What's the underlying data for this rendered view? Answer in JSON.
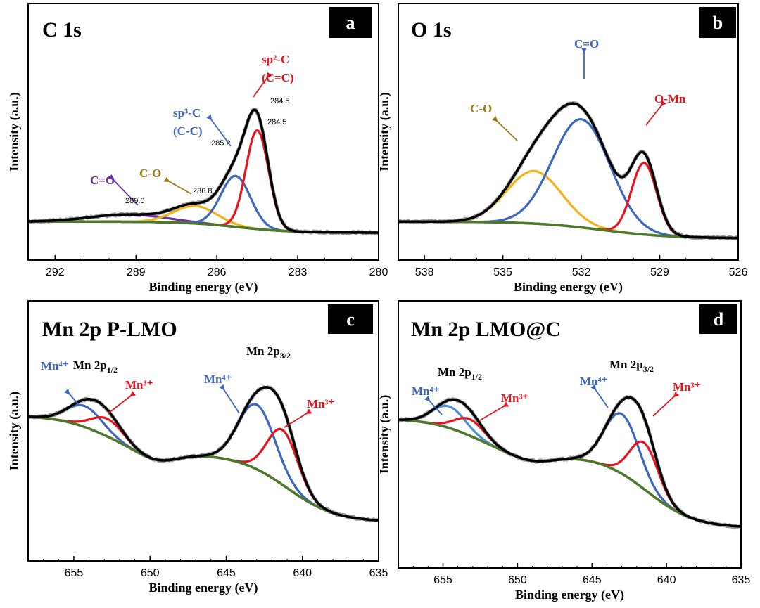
{
  "colors": {
    "raw": "#9a9a9a",
    "envelope": "#000000",
    "background": "#4a7a2a",
    "red": "#e8131c",
    "blue": "#3c67c0",
    "yellow": "#f2b21a",
    "purple": "#6b2fa0",
    "lightblue": "#4a90d9",
    "brown": "#a07a12"
  },
  "chart_data": [
    {
      "type": "line",
      "panel": "a",
      "title": "C 1s",
      "xlabel": "Binding energy (eV)",
      "ylabel": "Intensity (a.u.)",
      "xlim": [
        293.0,
        280.0
      ],
      "ylim": [
        0,
        1.05
      ],
      "xticks": [
        292,
        289,
        286,
        283,
        280
      ],
      "background": {
        "left": 0.0,
        "right": -0.07,
        "center": 285.2,
        "width": 1.0
      },
      "components": [
        {
          "name": "C=O",
          "color_key": "purple",
          "center": 289.3,
          "height": 0.045,
          "width": 1.4,
          "on_background": true
        },
        {
          "name": "C-O",
          "color_key": "yellow",
          "center": 286.8,
          "height": 0.11,
          "width": 0.8,
          "on_background": true
        },
        {
          "name": "sp3-C (C-C)",
          "color_key": "blue",
          "center": 285.3,
          "height": 0.32,
          "width": 0.55,
          "on_background": true
        },
        {
          "name": "sp2-C (C=C)",
          "color_key": "red",
          "center": 284.5,
          "height": 0.62,
          "width": 0.42,
          "on_background": true
        }
      ],
      "annotations": [
        {
          "type": "label",
          "text": "C=O",
          "color_key": "purple"
        },
        {
          "type": "label",
          "text": "C-O",
          "color_key": "brown"
        },
        {
          "type": "label",
          "text": "sp³-C",
          "color_key": "blue"
        },
        {
          "type": "label",
          "text": "(C-C)",
          "color_key": "blue"
        },
        {
          "type": "label",
          "text": "sp²-C",
          "color_key": "red"
        },
        {
          "type": "label",
          "text": "(C=C)",
          "color_key": "red"
        }
      ],
      "peak_values": [
        "289.0",
        "286.8",
        "285.2",
        "284.5",
        "284.5"
      ]
    },
    {
      "type": "line",
      "panel": "b",
      "title": "O 1s",
      "xlabel": "Binding energy (eV)",
      "ylabel": "Intensity (a.u.)",
      "xlim": [
        539.0,
        526.0
      ],
      "ylim": [
        0,
        1.05
      ],
      "xticks": [
        538,
        535,
        532,
        529,
        526
      ],
      "background": {
        "left": 0.0,
        "right": -0.105,
        "center": 531.2,
        "width": 1.3
      },
      "components": [
        {
          "name": "C-O",
          "color_key": "yellow",
          "center": 533.8,
          "height": 0.33,
          "width": 1.05,
          "on_background": true
        },
        {
          "name": "C=O",
          "color_key": "blue",
          "center": 532.0,
          "height": 0.68,
          "width": 1.1,
          "on_background": true
        },
        {
          "name": "O-Mn",
          "color_key": "red",
          "center": 529.6,
          "height": 0.45,
          "width": 0.48,
          "on_background": true
        }
      ],
      "annotations": [
        {
          "type": "label",
          "text": "C-O",
          "color_key": "brown"
        },
        {
          "type": "label",
          "text": "C=O",
          "color_key": "blue"
        },
        {
          "type": "label",
          "text": "O-Mn",
          "color_key": "red"
        }
      ]
    },
    {
      "type": "line",
      "panel": "c",
      "title": "Mn 2p P-LMO",
      "xlabel": "Binding energy (eV)",
      "ylabel": "Intensity (a.u.)",
      "xlim": [
        658.0,
        635.0
      ],
      "ylim": [
        0,
        1.05
      ],
      "xticks": [
        655,
        650,
        645,
        640,
        635
      ],
      "background": {
        "left": 0.52,
        "right": 0.0,
        "steps": [
          {
            "center": 653.0,
            "height": 0.24,
            "width": 1.5
          },
          {
            "center": 641.0,
            "height": 0.42,
            "width": 1.6
          }
        ],
        "dip": {
          "center": 649.5,
          "height": 0.055,
          "width": 1.3
        }
      },
      "components": [
        {
          "name": "Mn4+ 2p1/2",
          "color_key": "blue",
          "center": 654.3,
          "height": 0.13,
          "width": 1.15,
          "on_background": true
        },
        {
          "name": "Mn3+ 2p1/2",
          "color_key": "red",
          "center": 652.8,
          "height": 0.11,
          "width": 1.05,
          "on_background": true
        },
        {
          "name": "Mn4+ 2p3/2",
          "color_key": "blue",
          "center": 643.0,
          "height": 0.4,
          "width": 1.2,
          "on_background": true
        },
        {
          "name": "Mn3+ 2p3/2",
          "color_key": "red",
          "center": 641.3,
          "height": 0.34,
          "width": 1.0,
          "on_background": true
        }
      ],
      "annotations": [
        {
          "type": "label",
          "text": "Mn 2p",
          "sub": "1/2",
          "color_key": "envelope"
        },
        {
          "type": "label",
          "text": "Mn 2p",
          "sub": "3/2",
          "color_key": "envelope"
        },
        {
          "type": "label",
          "text": "Mn⁴⁺",
          "color_key": "blue"
        },
        {
          "type": "label",
          "text": "Mn³⁺",
          "color_key": "red"
        },
        {
          "type": "label",
          "text": "Mn⁴⁺",
          "color_key": "blue"
        },
        {
          "type": "label",
          "text": "Mn³⁺",
          "color_key": "red"
        }
      ]
    },
    {
      "type": "line",
      "panel": "d",
      "title": "Mn 2p LMO@C",
      "xlabel": "Binding energy (eV)",
      "ylabel": "Intensity (a.u.)",
      "xlim": [
        658.0,
        635.0
      ],
      "ylim": [
        0,
        1.05
      ],
      "xticks": [
        655,
        650,
        645,
        640,
        635
      ],
      "background": {
        "left": 0.54,
        "right": 0.0,
        "steps": [
          {
            "center": 653.0,
            "height": 0.22,
            "width": 1.5
          },
          {
            "center": 641.3,
            "height": 0.44,
            "width": 1.6
          }
        ],
        "dip": {
          "center": 649.0,
          "height": 0.045,
          "width": 1.5
        }
      },
      "components": [
        {
          "name": "Mn4+ 2p1/2",
          "color_key": "lightblue",
          "center": 654.6,
          "height": 0.13,
          "width": 1.1,
          "on_background": true
        },
        {
          "name": "Mn3+ 2p1/2",
          "color_key": "red",
          "center": 653.2,
          "height": 0.1,
          "width": 1.0,
          "on_background": true
        },
        {
          "name": "Mn4+ 2p3/2",
          "color_key": "blue",
          "center": 643.0,
          "height": 0.36,
          "width": 1.15,
          "on_background": true
        },
        {
          "name": "Mn3+ 2p3/2",
          "color_key": "red",
          "center": 641.5,
          "height": 0.28,
          "width": 0.95,
          "on_background": true
        }
      ],
      "annotations": [
        {
          "type": "label",
          "text": "Mn 2p",
          "sub": "1/2",
          "color_key": "envelope"
        },
        {
          "type": "label",
          "text": "Mn 2p",
          "sub": "3/2",
          "color_key": "envelope"
        },
        {
          "type": "label",
          "text": "Mn⁴⁺",
          "color_key": "blue"
        },
        {
          "type": "label",
          "text": "Mn³⁺",
          "color_key": "red"
        },
        {
          "type": "label",
          "text": "Mn⁴⁺",
          "color_key": "blue"
        },
        {
          "type": "label",
          "text": "Mn³⁺",
          "color_key": "red"
        }
      ]
    }
  ]
}
